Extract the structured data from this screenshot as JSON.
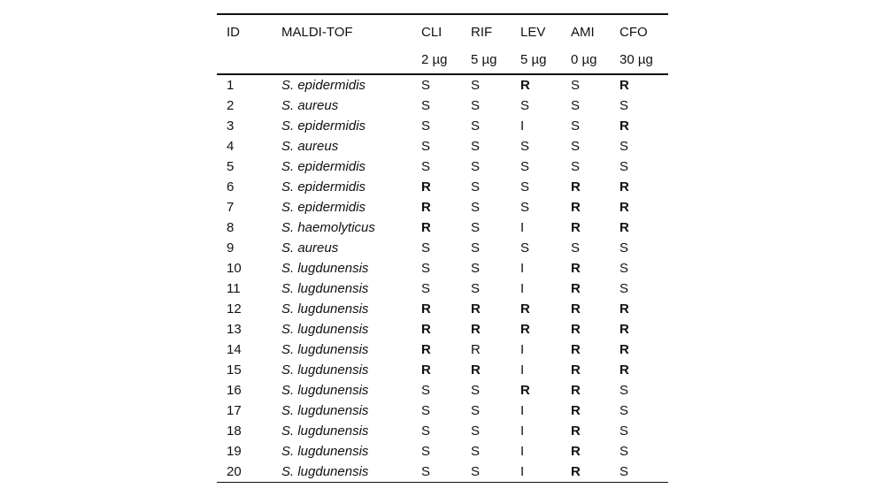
{
  "colors": {
    "background": "#ffffff",
    "text": "#111111",
    "rule": "#111111"
  },
  "table": {
    "columns": [
      {
        "label": "ID",
        "dose": ""
      },
      {
        "label": "MALDI-TOF",
        "dose": ""
      },
      {
        "label": "CLI",
        "dose": "2 µg"
      },
      {
        "label": "RIF",
        "dose": "5 µg"
      },
      {
        "label": "LEV",
        "dose": "5 µg"
      },
      {
        "label": "AMI",
        "dose": "0 µg"
      },
      {
        "label": "CFO",
        "dose": "30 µg"
      }
    ],
    "rows": [
      {
        "id": "1",
        "species": "S. epidermidis",
        "results": [
          "S",
          "S",
          "R",
          "S",
          "R"
        ],
        "bold": [
          false,
          false,
          true,
          false,
          true
        ]
      },
      {
        "id": "2",
        "species": "S. aureus",
        "results": [
          "S",
          "S",
          "S",
          "S",
          "S"
        ],
        "bold": [
          false,
          false,
          false,
          false,
          false
        ]
      },
      {
        "id": "3",
        "species": "S. epidermidis",
        "results": [
          "S",
          "S",
          "I",
          "S",
          "R"
        ],
        "bold": [
          false,
          false,
          false,
          false,
          true
        ]
      },
      {
        "id": "4",
        "species": "S. aureus",
        "results": [
          "S",
          "S",
          "S",
          "S",
          "S"
        ],
        "bold": [
          false,
          false,
          false,
          false,
          false
        ]
      },
      {
        "id": "5",
        "species": "S. epidermidis",
        "results": [
          "S",
          "S",
          "S",
          "S",
          "S"
        ],
        "bold": [
          false,
          false,
          false,
          false,
          false
        ]
      },
      {
        "id": "6",
        "species": "S. epidermidis",
        "results": [
          "R",
          "S",
          "S",
          "R",
          "R"
        ],
        "bold": [
          true,
          false,
          false,
          true,
          true
        ]
      },
      {
        "id": "7",
        "species": "S. epidermidis",
        "results": [
          "R",
          "S",
          "S",
          "R",
          "R"
        ],
        "bold": [
          true,
          false,
          false,
          true,
          true
        ]
      },
      {
        "id": "8",
        "species": "S. haemolyticus",
        "results": [
          "R",
          "S",
          "I",
          "R",
          "R"
        ],
        "bold": [
          true,
          false,
          false,
          true,
          true
        ]
      },
      {
        "id": "9",
        "species": "S. aureus",
        "results": [
          "S",
          "S",
          "S",
          "S",
          "S"
        ],
        "bold": [
          false,
          false,
          false,
          false,
          false
        ]
      },
      {
        "id": "10",
        "species": "S. lugdunensis",
        "results": [
          "S",
          "S",
          "I",
          "R",
          "S"
        ],
        "bold": [
          false,
          false,
          false,
          true,
          false
        ]
      },
      {
        "id": "11",
        "species": "S. lugdunensis",
        "results": [
          "S",
          "S",
          "I",
          "R",
          "S"
        ],
        "bold": [
          false,
          false,
          false,
          true,
          false
        ]
      },
      {
        "id": "12",
        "species": "S. lugdunensis",
        "results": [
          "R",
          "R",
          "R",
          "R",
          "R"
        ],
        "bold": [
          true,
          true,
          true,
          true,
          true
        ]
      },
      {
        "id": "13",
        "species": "S. lugdunensis",
        "results": [
          "R",
          "R",
          "R",
          "R",
          "R"
        ],
        "bold": [
          true,
          true,
          true,
          true,
          true
        ]
      },
      {
        "id": "14",
        "species": "S. lugdunensis",
        "results": [
          "R",
          "R",
          "I",
          "R",
          "R"
        ],
        "bold": [
          true,
          false,
          false,
          true,
          true
        ]
      },
      {
        "id": "15",
        "species": "S. lugdunensis",
        "results": [
          "R",
          "R",
          "I",
          "R",
          "R"
        ],
        "bold": [
          true,
          true,
          false,
          true,
          true
        ]
      },
      {
        "id": "16",
        "species": "S. lugdunensis",
        "results": [
          "S",
          "S",
          "R",
          "R",
          "S"
        ],
        "bold": [
          false,
          false,
          true,
          true,
          false
        ]
      },
      {
        "id": "17",
        "species": "S. lugdunensis",
        "results": [
          "S",
          "S",
          "I",
          "R",
          "S"
        ],
        "bold": [
          false,
          false,
          false,
          true,
          false
        ]
      },
      {
        "id": "18",
        "species": "S. lugdunensis",
        "results": [
          "S",
          "S",
          "I",
          "R",
          "S"
        ],
        "bold": [
          false,
          false,
          false,
          true,
          false
        ]
      },
      {
        "id": "19",
        "species": "S. lugdunensis",
        "results": [
          "S",
          "S",
          "I",
          "R",
          "S"
        ],
        "bold": [
          false,
          false,
          false,
          true,
          false
        ]
      },
      {
        "id": "20",
        "species": "S. lugdunensis",
        "results": [
          "S",
          "S",
          "I",
          "R",
          "S"
        ],
        "bold": [
          false,
          false,
          false,
          true,
          false
        ]
      }
    ]
  }
}
